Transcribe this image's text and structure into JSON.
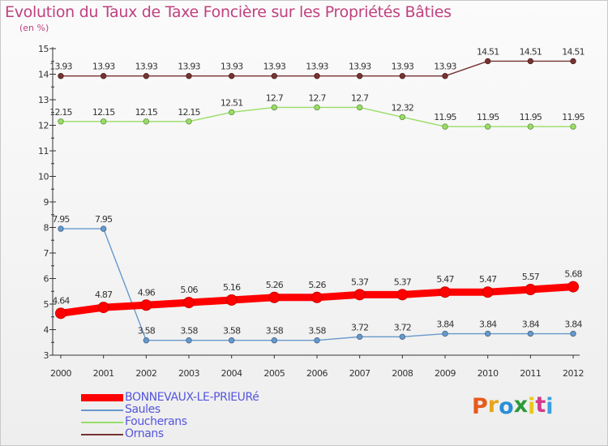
{
  "chart_data": {
    "type": "line",
    "title": "Evolution du Taux de Taxe Foncière sur les Propriétés Bâties",
    "unit_label": "(en %)",
    "xlabel": "",
    "ylabel": "(en %)",
    "ylim": [
      3,
      15
    ],
    "yticks": [
      "3",
      "4",
      "5",
      "6",
      "7",
      "8",
      "9",
      "10",
      "11",
      "12",
      "13",
      "14",
      "15"
    ],
    "categories": [
      "2000",
      "2001",
      "2002",
      "2003",
      "2004",
      "2005",
      "2006",
      "2007",
      "2008",
      "2009",
      "2010",
      "2011",
      "2012"
    ],
    "series": [
      {
        "name": "BONNEVAUX-LE-PRIEURé",
        "color": "#ff0000",
        "values": [
          4.64,
          4.87,
          4.96,
          5.06,
          5.16,
          5.26,
          5.26,
          5.37,
          5.37,
          5.47,
          5.47,
          5.57,
          5.68
        ],
        "labels": [
          "4.64",
          "4.87",
          "4.96",
          "5.06",
          "5.16",
          "5.26",
          "5.26",
          "5.37",
          "5.37",
          "5.47",
          "5.47",
          "5.57",
          "5.68"
        ]
      },
      {
        "name": "Saules",
        "color": "#6699cc",
        "values": [
          7.95,
          7.95,
          3.58,
          3.58,
          3.58,
          3.58,
          3.58,
          3.72,
          3.72,
          3.84,
          3.84,
          3.84,
          3.84
        ],
        "labels": [
          "7.95",
          "7.95",
          "3.58",
          "3.58",
          "3.58",
          "3.58",
          "3.58",
          "3.72",
          "3.72",
          "3.84",
          "3.84",
          "3.84",
          "3.84"
        ]
      },
      {
        "name": "Foucherans",
        "color": "#99dd66",
        "values": [
          12.15,
          12.15,
          12.15,
          12.15,
          12.51,
          12.7,
          12.7,
          12.7,
          12.32,
          11.95,
          11.95,
          11.95,
          11.95
        ],
        "labels": [
          "12.15",
          "12.15",
          "12.15",
          "12.15",
          "12.51",
          "12.7",
          "12.7",
          "12.7",
          "12.32",
          "11.95",
          "11.95",
          "11.95",
          "11.95"
        ]
      },
      {
        "name": "Ornans",
        "color": "#773333",
        "values": [
          13.93,
          13.93,
          13.93,
          13.93,
          13.93,
          13.93,
          13.93,
          13.93,
          13.93,
          13.93,
          14.51,
          14.51,
          14.51
        ],
        "labels": [
          "13.93",
          "13.93",
          "13.93",
          "13.93",
          "13.93",
          "13.93",
          "13.93",
          "13.93",
          "13.93",
          "13.93",
          "14.51",
          "14.51",
          "14.51"
        ]
      }
    ],
    "legend_position": "bottom-left"
  },
  "branding": {
    "logo_text": "Proxiti",
    "logo_colors": [
      "#e85a1a",
      "#e8a51a",
      "#2a8fd6",
      "#2a9a3a",
      "#e8c81a",
      "#d63a8a",
      "#3aa0e0"
    ]
  }
}
